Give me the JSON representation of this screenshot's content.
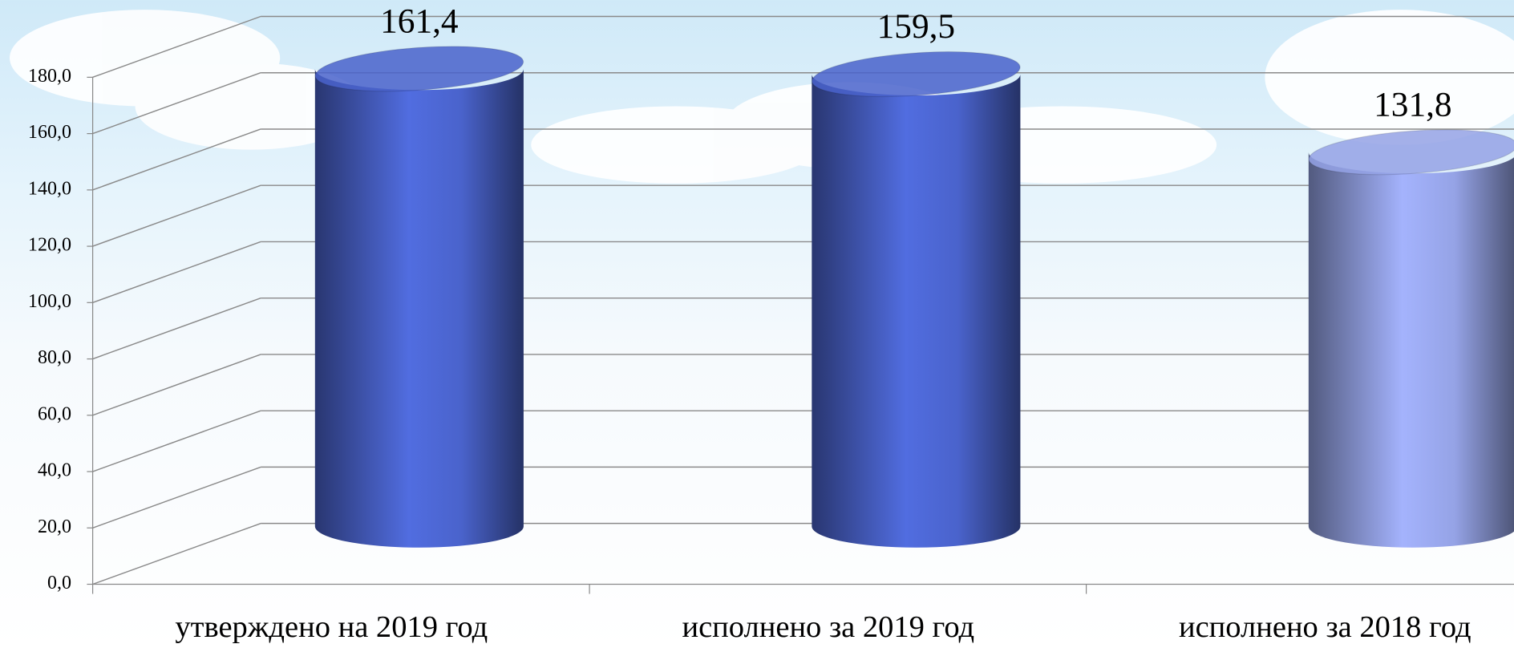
{
  "chart_data": {
    "type": "bar3d",
    "categories": [
      "утверждено на 2019 год",
      "исполнено за 2019 год",
      "исполнено за 2018 год"
    ],
    "values": [
      161.4,
      159.5,
      131.8
    ],
    "value_labels": [
      "161,4",
      "159,5",
      "131,8"
    ],
    "colors": [
      "#4a63cc",
      "#4a63cc",
      "#95a3e6"
    ],
    "ylim": [
      0,
      180
    ],
    "yticks": [
      {
        "value": 0,
        "label": "0,0"
      },
      {
        "value": 20,
        "label": "20,0"
      },
      {
        "value": 40,
        "label": "40,0"
      },
      {
        "value": 60,
        "label": "60,0"
      },
      {
        "value": 80,
        "label": "80,0"
      },
      {
        "value": 100,
        "label": "100,0"
      },
      {
        "value": 120,
        "label": "120,0"
      },
      {
        "value": 140,
        "label": "140,0"
      },
      {
        "value": 160,
        "label": "160,0"
      },
      {
        "value": 180,
        "label": "180,0"
      }
    ],
    "grid": true
  }
}
